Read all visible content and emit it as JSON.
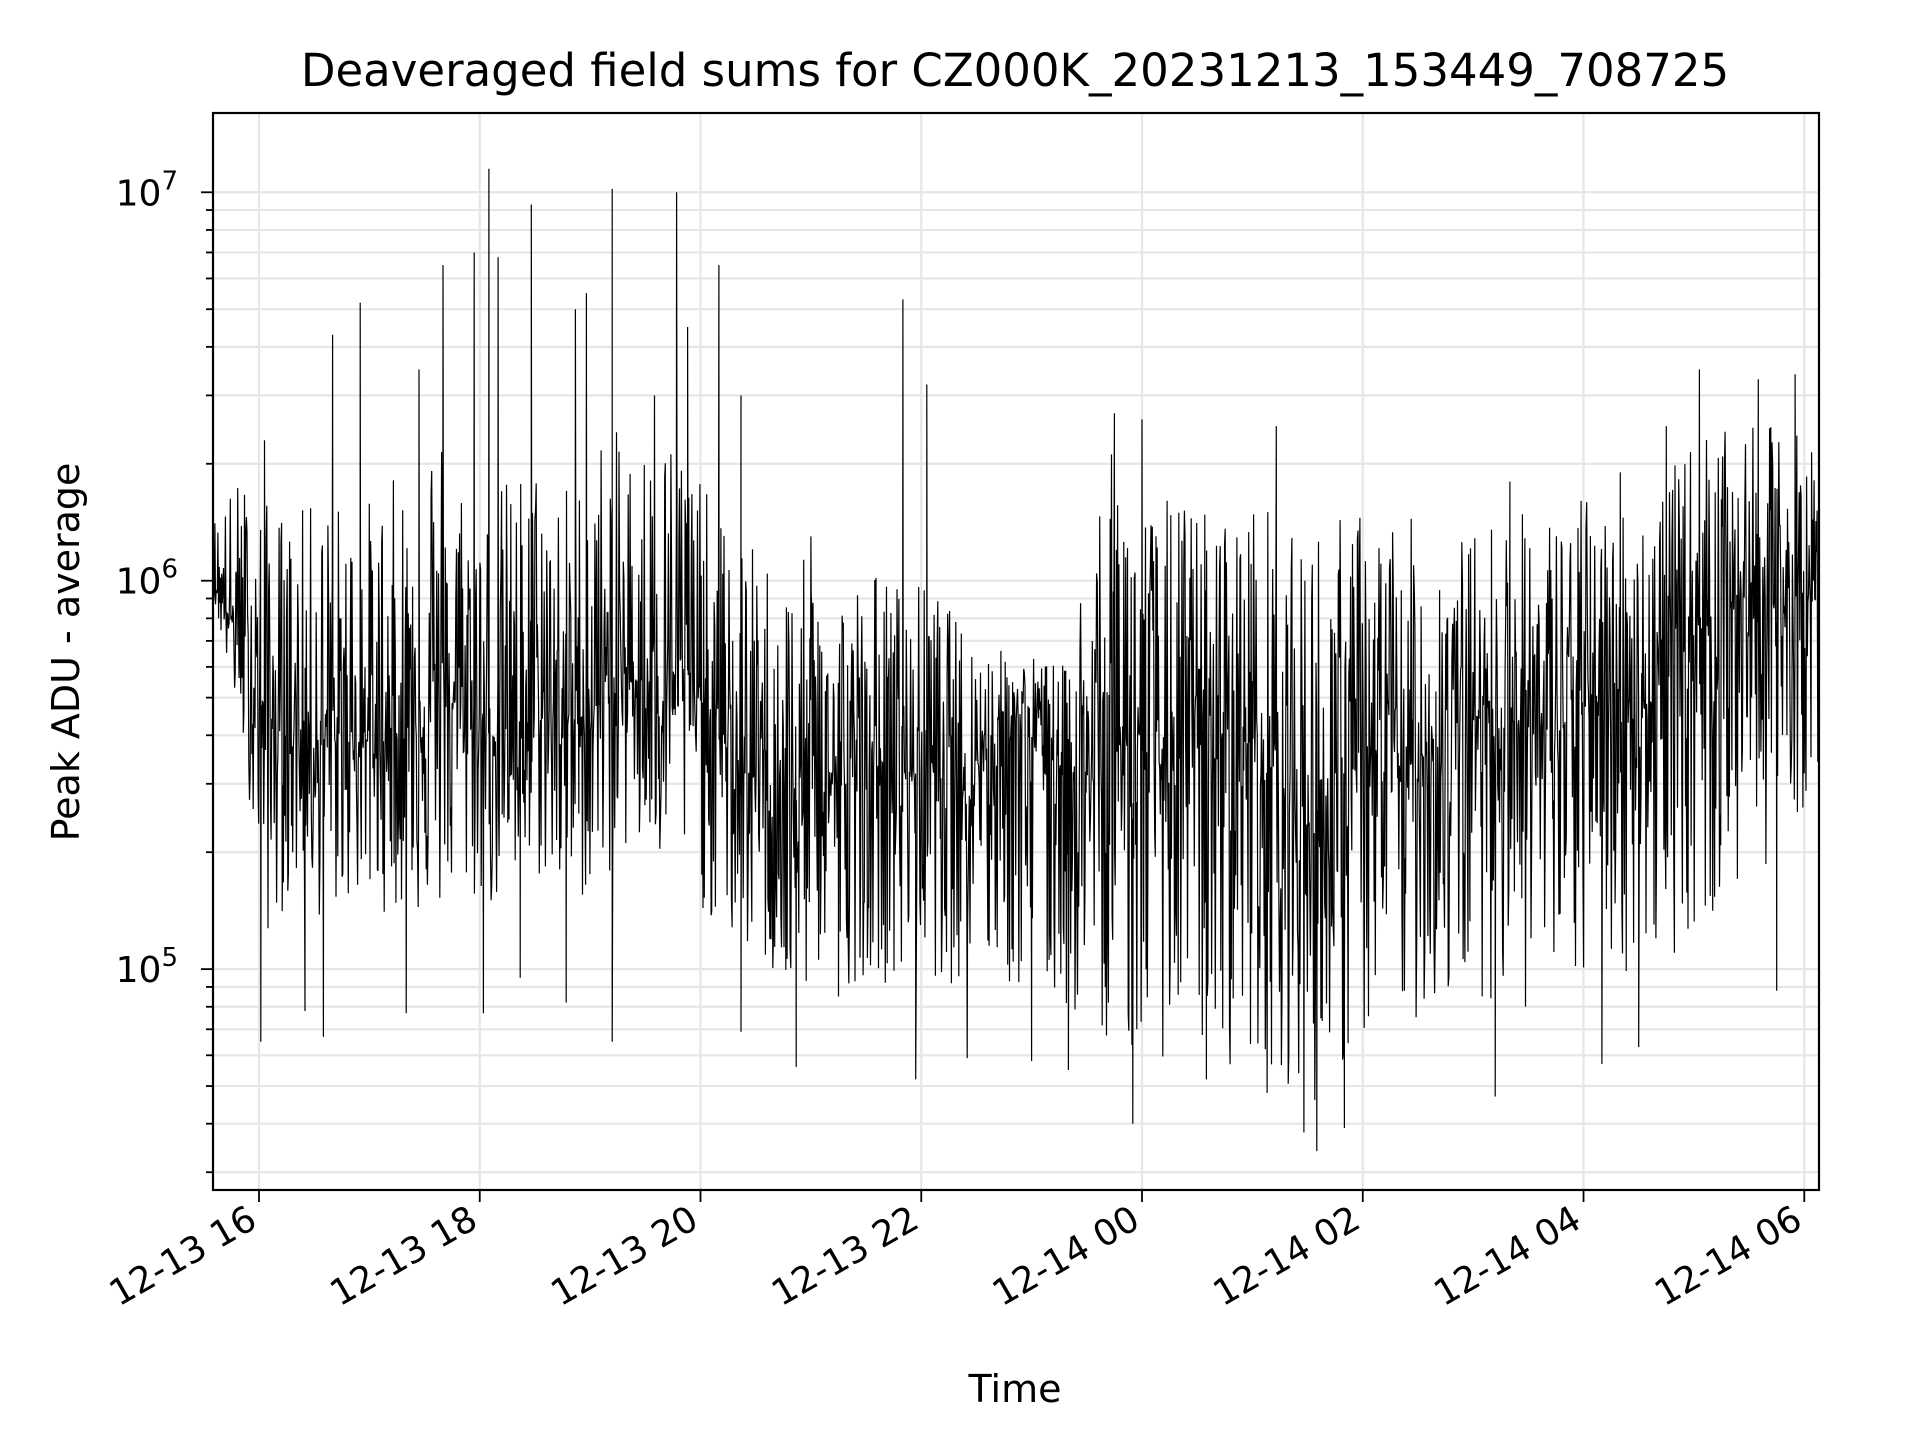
{
  "chart_data": {
    "type": "line",
    "title": "Deaveraged field sums for CZ000K_20231213_153449_708725",
    "xlabel": "Time",
    "ylabel": "Peak ADU - average",
    "yscale": "log",
    "grid": true,
    "line_color": "#000000",
    "xlim": [
      "2023-12-13 15:35",
      "2023-12-14 06:08"
    ],
    "ylim": [
      27000,
      16000000
    ],
    "x_ticks": [
      "12-13 16",
      "12-13 18",
      "12-13 20",
      "12-13 22",
      "12-14 00",
      "12-14 02",
      "12-14 04",
      "12-14 06"
    ],
    "y_ticks": [
      {
        "base": "10",
        "exp": "5"
      },
      {
        "base": "10",
        "exp": "6"
      },
      {
        "base": "10",
        "exp": "7"
      }
    ],
    "series": [
      {
        "values_description_note": null,
        "x": [
          "12-13 15:35",
          "12-13 15:50",
          "12-13 16:05",
          "12-13 16:20",
          "12-13 16:35",
          "12-13 16:50",
          "12-13 17:05",
          "12-13 17:20",
          "12-13 17:35",
          "12-13 17:50",
          "12-13 18:05",
          "12-13 18:20",
          "12-13 18:35",
          "12-13 18:50",
          "12-13 19:05",
          "12-13 19:20",
          "12-13 19:35",
          "12-13 19:50",
          "12-13 20:05",
          "12-13 20:20",
          "12-13 20:35",
          "12-13 20:50",
          "12-13 21:05",
          "12-13 21:20",
          "12-13 21:35",
          "12-13 21:50",
          "12-13 22:05",
          "12-13 22:20",
          "12-13 22:35",
          "12-13 22:50",
          "12-13 23:05",
          "12-13 23:20",
          "12-13 23:35",
          "12-13 23:50",
          "12-14 00:05",
          "12-14 00:20",
          "12-14 00:35",
          "12-14 00:50",
          "12-14 01:05",
          "12-14 01:20",
          "12-14 01:35",
          "12-14 01:50",
          "12-14 02:05",
          "12-14 02:20",
          "12-14 02:35",
          "12-14 02:50",
          "12-14 03:05",
          "12-14 03:20",
          "12-14 03:35",
          "12-14 03:50",
          "12-14 04:05",
          "12-14 04:20",
          "12-14 04:35",
          "12-14 04:50",
          "12-14 05:05",
          "12-14 05:20",
          "12-14 05:35",
          "12-14 05:50",
          "12-14 06:05"
        ],
        "typical": [
          1000000,
          700000,
          420000,
          400000,
          380000,
          400000,
          380000,
          420000,
          500000,
          480000,
          400000,
          420000,
          450000,
          430000,
          480000,
          560000,
          550000,
          600000,
          450000,
          330000,
          300000,
          250000,
          320000,
          300000,
          330000,
          320000,
          340000,
          320000,
          380000,
          420000,
          400000,
          330000,
          300000,
          400000,
          330000,
          350000,
          380000,
          420000,
          350000,
          280000,
          220000,
          300000,
          350000,
          320000,
          360000,
          420000,
          450000,
          450000,
          400000,
          420000,
          500000,
          520000,
          480000,
          600000,
          800000,
          900000,
          900000,
          850000,
          900000
        ],
        "upper_envelope": [
          1500000,
          1900000,
          1600000,
          1500000,
          1700000,
          1600000,
          1700000,
          2000000,
          3000000,
          2000000,
          1700000,
          2000000,
          2200000,
          1800000,
          2500000,
          2400000,
          2500000,
          2600000,
          1600000,
          1300000,
          1200000,
          1100000,
          1200000,
          1000000,
          1100000,
          1000000,
          1000000,
          800000,
          700000,
          650000,
          650000,
          600000,
          2200000,
          2100000,
          1600000,
          1700000,
          1600000,
          1500000,
          1700000,
          1300000,
          1500000,
          1500000,
          1600000,
          1500000,
          1400000,
          1300000,
          1400000,
          1600000,
          1500000,
          1600000,
          1700000,
          1600000,
          1700000,
          2000000,
          2500000,
          2400000,
          2500000,
          2600000,
          2300000
        ],
        "lower_envelope": [
          900000,
          400000,
          120000,
          160000,
          130000,
          150000,
          140000,
          140000,
          130000,
          150000,
          140000,
          150000,
          170000,
          140000,
          160000,
          200000,
          170000,
          180000,
          130000,
          110000,
          100000,
          70000,
          100000,
          90000,
          100000,
          80000,
          95000,
          90000,
          95000,
          85000,
          80000,
          75000,
          70000,
          60000,
          55000,
          65000,
          60000,
          55000,
          60000,
          50000,
          45000,
          55000,
          65000,
          70000,
          75000,
          80000,
          85000,
          80000,
          75000,
          80000,
          90000,
          95000,
          100000,
          110000,
          120000,
          140000,
          180000,
          200000,
          300000
        ],
        "spikes": [
          {
            "x": "12-13 16:03",
            "y": 2300000
          },
          {
            "x": "12-13 16:40",
            "y": 4300000
          },
          {
            "x": "12-13 16:55",
            "y": 5200000
          },
          {
            "x": "12-13 17:27",
            "y": 3500000
          },
          {
            "x": "12-13 17:40",
            "y": 6500000
          },
          {
            "x": "12-13 17:57",
            "y": 7000000
          },
          {
            "x": "12-13 18:05",
            "y": 11500000
          },
          {
            "x": "12-13 18:10",
            "y": 6800000
          },
          {
            "x": "12-13 18:28",
            "y": 9300000
          },
          {
            "x": "12-13 18:52",
            "y": 5000000
          },
          {
            "x": "12-13 18:58",
            "y": 5500000
          },
          {
            "x": "12-13 19:12",
            "y": 10200000
          },
          {
            "x": "12-13 19:35",
            "y": 3000000
          },
          {
            "x": "12-13 19:47",
            "y": 10000000
          },
          {
            "x": "12-13 19:53",
            "y": 4500000
          },
          {
            "x": "12-13 20:10",
            "y": 6500000
          },
          {
            "x": "12-13 20:22",
            "y": 3000000
          },
          {
            "x": "12-13 21:00",
            "y": 1300000
          },
          {
            "x": "12-13 21:50",
            "y": 5300000
          },
          {
            "x": "12-13 22:03",
            "y": 3200000
          },
          {
            "x": "12-13 23:45",
            "y": 2700000
          },
          {
            "x": "12-14 00:00",
            "y": 2600000
          },
          {
            "x": "12-14 01:13",
            "y": 2500000
          },
          {
            "x": "12-14 03:20",
            "y": 1800000
          },
          {
            "x": "12-14 04:20",
            "y": 1900000
          },
          {
            "x": "12-14 04:45",
            "y": 2500000
          },
          {
            "x": "12-14 05:03",
            "y": 3500000
          },
          {
            "x": "12-14 05:35",
            "y": 3300000
          },
          {
            "x": "12-14 05:55",
            "y": 3400000
          }
        ],
        "dips": [
          {
            "x": "12-13 16:01",
            "y": 65000
          },
          {
            "x": "12-13 16:25",
            "y": 78000
          },
          {
            "x": "12-13 16:35",
            "y": 67000
          },
          {
            "x": "12-13 17:20",
            "y": 77000
          },
          {
            "x": "12-13 18:02",
            "y": 77000
          },
          {
            "x": "12-13 18:22",
            "y": 95000
          },
          {
            "x": "12-13 18:47",
            "y": 82000
          },
          {
            "x": "12-13 19:12",
            "y": 65000
          },
          {
            "x": "12-13 20:22",
            "y": 69000
          },
          {
            "x": "12-13 20:52",
            "y": 56000
          },
          {
            "x": "12-13 21:15",
            "y": 85000
          },
          {
            "x": "12-13 21:57",
            "y": 52000
          },
          {
            "x": "12-13 22:25",
            "y": 59000
          },
          {
            "x": "12-13 23:00",
            "y": 58000
          },
          {
            "x": "12-13 23:20",
            "y": 55000
          },
          {
            "x": "12-13 23:55",
            "y": 40000
          },
          {
            "x": "12-14 00:35",
            "y": 52000
          },
          {
            "x": "12-14 01:08",
            "y": 48000
          },
          {
            "x": "12-14 01:28",
            "y": 38000
          },
          {
            "x": "12-14 01:35",
            "y": 34000
          },
          {
            "x": "12-14 01:50",
            "y": 39000
          },
          {
            "x": "12-14 03:12",
            "y": 47000
          },
          {
            "x": "12-14 04:10",
            "y": 57000
          },
          {
            "x": "12-14 04:30",
            "y": 63000
          },
          {
            "x": "12-14 05:45",
            "y": 88000
          }
        ]
      }
    ]
  }
}
